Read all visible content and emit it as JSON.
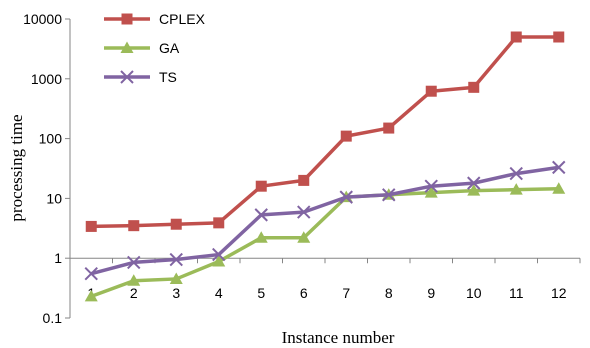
{
  "chart_data": {
    "type": "line",
    "title": "",
    "xlabel": "Instance number",
    "ylabel": "processing time",
    "yscale": "log",
    "ylim": [
      0.1,
      10000
    ],
    "y_ticks": [
      "0.1",
      "1",
      "10",
      "100",
      "1000",
      "10000"
    ],
    "categories": [
      "1",
      "2",
      "3",
      "4",
      "5",
      "6",
      "7",
      "8",
      "9",
      "10",
      "11",
      "12"
    ],
    "grid": false,
    "legend": "top-left",
    "series": [
      {
        "name": "CPLEX",
        "color": "#c0504d",
        "marker": "square",
        "values": [
          3.4,
          3.5,
          3.7,
          3.9,
          16,
          20,
          110,
          150,
          620,
          720,
          5000,
          5000
        ]
      },
      {
        "name": "GA",
        "color": "#9bbb59",
        "marker": "triangle",
        "values": [
          0.23,
          0.42,
          0.45,
          0.88,
          2.2,
          2.2,
          10.5,
          11.5,
          12.5,
          13.5,
          14,
          14.5
        ]
      },
      {
        "name": "TS",
        "color": "#8064a2",
        "marker": "x",
        "values": [
          0.55,
          0.85,
          0.95,
          1.15,
          5.3,
          5.9,
          10.5,
          11.5,
          16,
          18,
          26,
          33
        ]
      }
    ]
  }
}
